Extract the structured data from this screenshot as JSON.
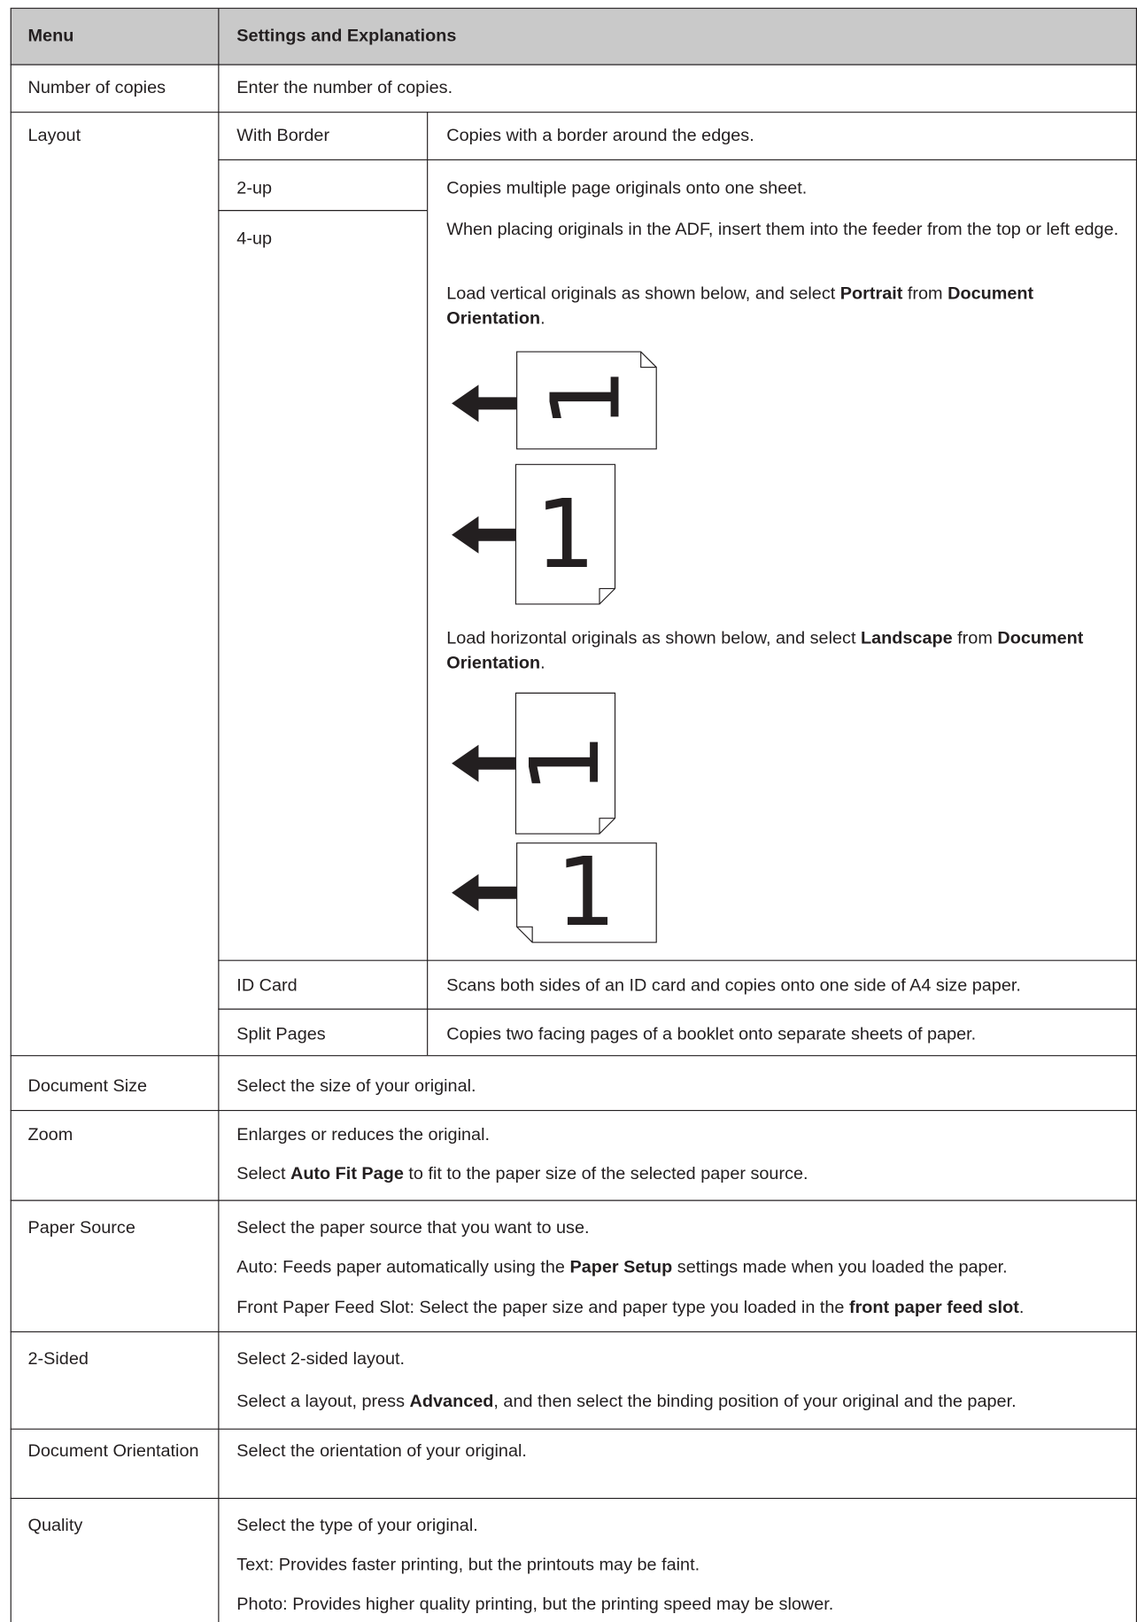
{
  "table": {
    "header": [
      "Menu",
      "Settings and Explanations"
    ],
    "rows": [
      {
        "menu": "Number of copies",
        "settings": [
          [
            "Enter the number of copies."
          ]
        ]
      },
      {
        "menu": "Layout",
        "options": [
          {
            "name": "With Border",
            "settings": [
              [
                "Copies with a border around the edges."
              ]
            ]
          },
          {
            "name": "2-up"
          },
          {
            "name": "4-up"
          },
          {
            "name": "ID Card",
            "settings": [
              [
                "Scans both sides of an ID card and copies onto one side of A4 size paper."
              ]
            ]
          },
          {
            "name": "Split Pages",
            "settings": [
              [
                "Copies two facing pages of a booklet onto separate sheets of paper."
              ]
            ]
          }
        ],
        "multi_page_settings": [
          [
            "Copies multiple page originals onto one sheet."
          ],
          [
            "When placing originals in the ADF, insert them into the feeder from the top or left edge."
          ],
          [
            "Load vertical originals as shown below, and select ",
            "Portrait",
            " from ",
            "Document Orientation",
            "."
          ],
          [
            "Load horizontal originals as shown below, and select ",
            "Landscape",
            " from ",
            "Document Orientation",
            "."
          ]
        ],
        "illustration_label": "1"
      },
      {
        "menu": "Document Size",
        "settings": [
          [
            "Select the size of your original."
          ]
        ]
      },
      {
        "menu": "Zoom",
        "settings": [
          [
            "Enlarges or reduces the original."
          ],
          [
            "Select ",
            "Auto Fit Page",
            " to fit to the paper size of the selected paper source."
          ]
        ]
      },
      {
        "menu": "Paper Source",
        "settings": [
          [
            "Select the paper source that you want to use."
          ],
          [
            "Auto: Feeds paper automatically using the ",
            "Paper Setup",
            " settings made when you loaded the paper."
          ],
          [
            "Front Paper Feed Slot: Select the paper size and paper type you loaded in the ",
            "front paper feed slot",
            "."
          ]
        ]
      },
      {
        "menu": "2-Sided",
        "settings": [
          [
            "Select 2-sided layout."
          ],
          [
            "Select a layout, press ",
            "Advanced",
            ", and then select the binding position of your original and the paper."
          ]
        ]
      },
      {
        "menu": "Document Orientation",
        "settings": [
          [
            "Select the orientation of your original."
          ]
        ]
      },
      {
        "menu": "Quality",
        "settings": [
          [
            "Select the type of your original."
          ],
          [
            "Text: Provides faster printing, but the printouts may be faint."
          ],
          [
            "Photo: Provides higher quality printing, but the printing speed may be slower."
          ]
        ]
      }
    ]
  }
}
